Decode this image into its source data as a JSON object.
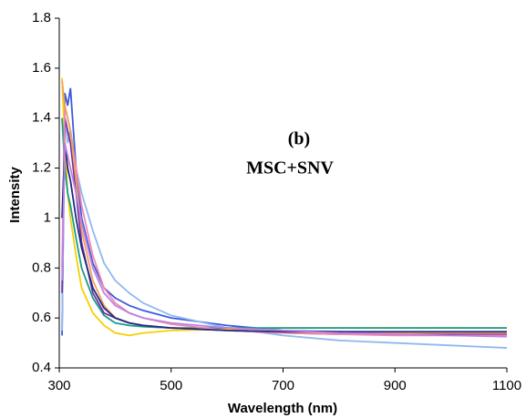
{
  "chart_data": {
    "type": "line",
    "annotations": [
      "(b)",
      "MSC+SNV"
    ],
    "x_label": "Wavelength (nm)",
    "y_label": "Intensity",
    "x": [
      305,
      310,
      315,
      320,
      330,
      340,
      360,
      380,
      400,
      425,
      450,
      500,
      600,
      700,
      800,
      900,
      1000,
      1100
    ],
    "series": [
      {
        "color": "#3b5bdb",
        "values": [
          0.53,
          1.5,
          1.45,
          1.52,
          1.2,
          1.0,
          0.82,
          0.72,
          0.68,
          0.65,
          0.63,
          0.6,
          0.57,
          0.55,
          0.545,
          0.54,
          0.54,
          0.54
        ]
      },
      {
        "color": "#8fb8f0",
        "values": [
          0.55,
          1.4,
          1.3,
          1.35,
          1.2,
          1.1,
          0.95,
          0.82,
          0.75,
          0.7,
          0.66,
          0.61,
          0.56,
          0.53,
          0.51,
          0.5,
          0.49,
          0.48
        ]
      },
      {
        "color": "#f5d000",
        "values": [
          1.56,
          1.3,
          1.1,
          1.0,
          0.85,
          0.72,
          0.62,
          0.57,
          0.54,
          0.53,
          0.54,
          0.55,
          0.555,
          0.56,
          0.56,
          0.56,
          0.56,
          0.56
        ]
      },
      {
        "color": "#1a9a8a",
        "values": [
          1.4,
          1.2,
          1.1,
          1.05,
          0.92,
          0.8,
          0.68,
          0.61,
          0.58,
          0.57,
          0.565,
          0.56,
          0.56,
          0.56,
          0.56,
          0.56,
          0.56,
          0.56
        ]
      },
      {
        "color": "#7030a0",
        "values": [
          0.7,
          1.4,
          1.35,
          1.3,
          1.1,
          0.9,
          0.7,
          0.62,
          0.6,
          0.58,
          0.57,
          0.56,
          0.55,
          0.54,
          0.535,
          0.535,
          0.535,
          0.535
        ]
      },
      {
        "color": "#f08ab0",
        "values": [
          0.8,
          1.45,
          1.4,
          1.35,
          1.2,
          1.05,
          0.85,
          0.72,
          0.66,
          0.62,
          0.6,
          0.575,
          0.55,
          0.54,
          0.535,
          0.53,
          0.53,
          0.53
        ]
      },
      {
        "color": "#f0a060",
        "values": [
          1.55,
          1.45,
          1.4,
          1.35,
          1.15,
          0.95,
          0.75,
          0.65,
          0.6,
          0.58,
          0.57,
          0.56,
          0.55,
          0.545,
          0.54,
          0.54,
          0.54,
          0.54
        ]
      },
      {
        "color": "#1f2a80",
        "values": [
          1.0,
          1.3,
          1.2,
          1.15,
          1.0,
          0.88,
          0.72,
          0.64,
          0.6,
          0.58,
          0.57,
          0.56,
          0.55,
          0.545,
          0.545,
          0.545,
          0.545,
          0.545
        ]
      },
      {
        "color": "#c080e0",
        "values": [
          0.75,
          1.3,
          1.25,
          1.2,
          1.1,
          0.98,
          0.8,
          0.7,
          0.65,
          0.62,
          0.6,
          0.58,
          0.56,
          0.55,
          0.54,
          0.535,
          0.53,
          0.525
        ]
      }
    ],
    "xlim": [
      300,
      1100
    ],
    "xticks": [
      300,
      500,
      700,
      900,
      1100
    ],
    "ylim": [
      0.4,
      1.8
    ],
    "yticks": [
      0.4,
      0.6,
      0.8,
      1,
      1.2,
      1.4,
      1.6,
      1.8
    ]
  }
}
